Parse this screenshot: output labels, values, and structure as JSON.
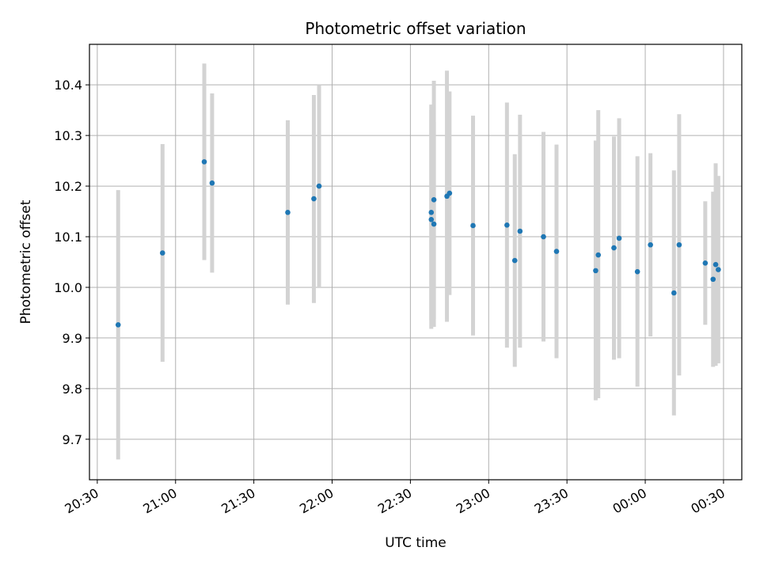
{
  "chart_data": {
    "type": "scatter",
    "title": "Photometric offset variation",
    "xlabel": "UTC time",
    "ylabel": "Photometric offset",
    "x_axis_kind": "time",
    "x_tick_labels": [
      "20:30",
      "21:00",
      "21:30",
      "22:00",
      "22:30",
      "23:00",
      "23:30",
      "00:00",
      "00:30"
    ],
    "xlim": [
      "2000-01-01T20:27",
      "2000-01-02T00:37"
    ],
    "ylim": [
      9.62,
      10.48
    ],
    "y_ticks": [
      9.7,
      9.8,
      9.9,
      10.0,
      10.1,
      10.2,
      10.3,
      10.4
    ],
    "grid": true,
    "point_color": "#1f77b4",
    "errorbar_color": "#d3d3d3",
    "series": [
      {
        "points": [
          {
            "t": "2000-01-01T20:38",
            "y": 9.926,
            "lo": 9.66,
            "hi": 10.192
          },
          {
            "t": "2000-01-01T20:55",
            "y": 10.068,
            "lo": 9.853,
            "hi": 10.283
          },
          {
            "t": "2000-01-01T21:11",
            "y": 10.248,
            "lo": 10.054,
            "hi": 10.442
          },
          {
            "t": "2000-01-01T21:14",
            "y": 10.206,
            "lo": 10.029,
            "hi": 10.383
          },
          {
            "t": "2000-01-01T21:43",
            "y": 10.148,
            "lo": 9.966,
            "hi": 10.33
          },
          {
            "t": "2000-01-01T21:53",
            "y": 10.175,
            "lo": 9.969,
            "hi": 10.38
          },
          {
            "t": "2000-01-01T21:55",
            "y": 10.2,
            "lo": 10.0,
            "hi": 10.4
          },
          {
            "t": "2000-01-01T22:38",
            "y": 10.148,
            "lo": 9.935,
            "hi": 10.361
          },
          {
            "t": "2000-01-01T22:38",
            "y": 10.134,
            "lo": 9.918,
            "hi": 10.35
          },
          {
            "t": "2000-01-01T22:39",
            "y": 10.173,
            "lo": 9.938,
            "hi": 10.408
          },
          {
            "t": "2000-01-01T22:39",
            "y": 10.125,
            "lo": 9.922,
            "hi": 10.327
          },
          {
            "t": "2000-01-01T22:44",
            "y": 10.18,
            "lo": 9.932,
            "hi": 10.428
          },
          {
            "t": "2000-01-01T22:45",
            "y": 10.186,
            "lo": 9.985,
            "hi": 10.387
          },
          {
            "t": "2000-01-01T22:54",
            "y": 10.122,
            "lo": 9.905,
            "hi": 10.339
          },
          {
            "t": "2000-01-01T23:07",
            "y": 10.123,
            "lo": 9.881,
            "hi": 10.365
          },
          {
            "t": "2000-01-01T23:10",
            "y": 10.053,
            "lo": 9.843,
            "hi": 10.263
          },
          {
            "t": "2000-01-01T23:12",
            "y": 10.111,
            "lo": 9.881,
            "hi": 10.341
          },
          {
            "t": "2000-01-01T23:21",
            "y": 10.1,
            "lo": 9.893,
            "hi": 10.307
          },
          {
            "t": "2000-01-01T23:26",
            "y": 10.071,
            "lo": 9.86,
            "hi": 10.282
          },
          {
            "t": "2000-01-01T23:41",
            "y": 10.033,
            "lo": 9.777,
            "hi": 10.29
          },
          {
            "t": "2000-01-01T23:42",
            "y": 10.064,
            "lo": 9.781,
            "hi": 10.35
          },
          {
            "t": "2000-01-01T23:48",
            "y": 10.078,
            "lo": 9.857,
            "hi": 10.298
          },
          {
            "t": "2000-01-01T23:50",
            "y": 10.097,
            "lo": 9.86,
            "hi": 10.334
          },
          {
            "t": "2000-01-01T23:57",
            "y": 10.031,
            "lo": 9.804,
            "hi": 10.259
          },
          {
            "t": "2000-01-02T00:02",
            "y": 10.084,
            "lo": 9.903,
            "hi": 10.265
          },
          {
            "t": "2000-01-02T00:11",
            "y": 9.989,
            "lo": 9.747,
            "hi": 10.231
          },
          {
            "t": "2000-01-02T00:13",
            "y": 10.084,
            "lo": 9.826,
            "hi": 10.342
          },
          {
            "t": "2000-01-02T00:23",
            "y": 10.048,
            "lo": 9.926,
            "hi": 10.17
          },
          {
            "t": "2000-01-02T00:26",
            "y": 10.016,
            "lo": 9.843,
            "hi": 10.189
          },
          {
            "t": "2000-01-02T00:27",
            "y": 10.045,
            "lo": 9.845,
            "hi": 10.245
          },
          {
            "t": "2000-01-02T00:28",
            "y": 10.035,
            "lo": 9.85,
            "hi": 10.22
          }
        ]
      }
    ]
  }
}
